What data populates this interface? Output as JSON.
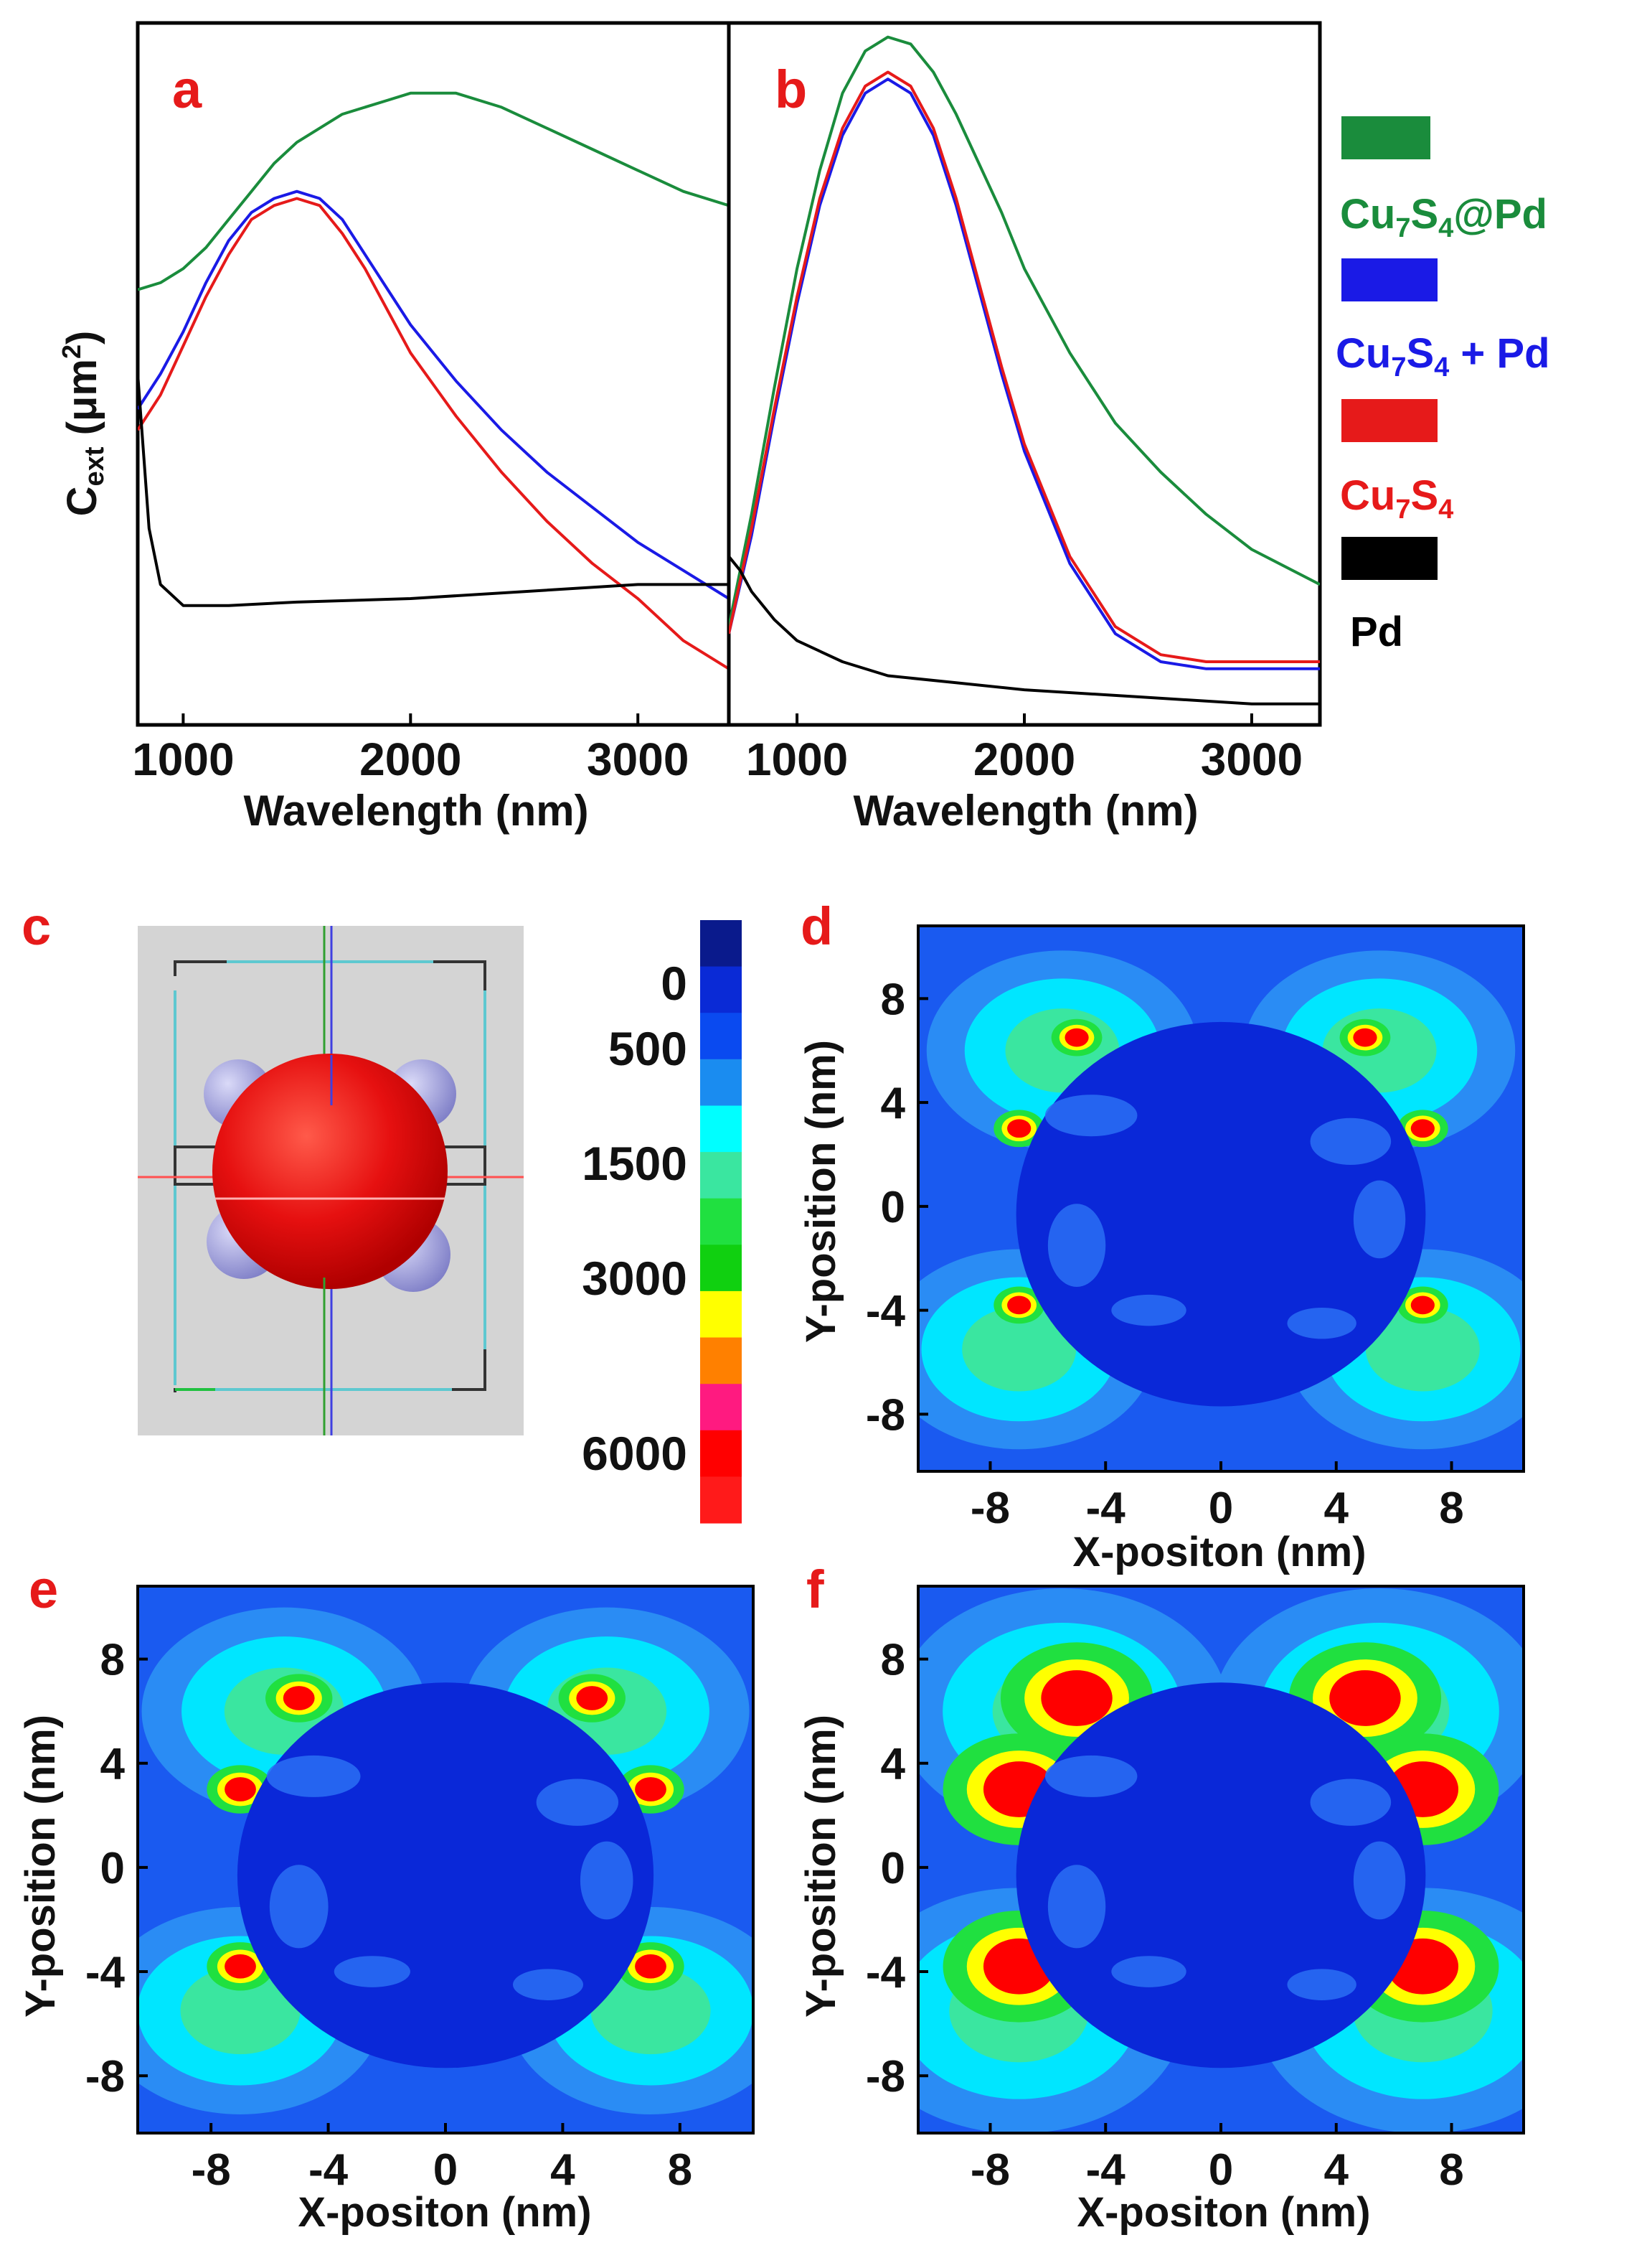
{
  "chart_data": [
    {
      "panel": "a",
      "type": "line",
      "xlabel": "Wavelength (nm)",
      "ylabel_main": "C",
      "ylabel_sub": "ext",
      "ylabel_unit_open": " (μm",
      "ylabel_unit_sup": "2",
      "ylabel_unit_close": ")",
      "xlim": [
        800,
        3400
      ],
      "ylim": [
        0,
        1
      ],
      "xticks": [
        1000,
        2000,
        3000
      ],
      "series": [
        {
          "name": "Cu7S4@Pd",
          "color": "#1a8c3c",
          "x": [
            800,
            900,
            1000,
            1100,
            1200,
            1300,
            1400,
            1500,
            1700,
            1900,
            2000,
            2200,
            2400,
            2600,
            2800,
            3000,
            3200,
            3400
          ],
          "y": [
            0.62,
            0.63,
            0.65,
            0.68,
            0.72,
            0.76,
            0.8,
            0.83,
            0.87,
            0.89,
            0.9,
            0.9,
            0.88,
            0.85,
            0.82,
            0.79,
            0.76,
            0.74
          ]
        },
        {
          "name": "Cu7S4 + Pd",
          "color": "#1a1ae6",
          "x": [
            800,
            900,
            1000,
            1100,
            1200,
            1300,
            1400,
            1500,
            1600,
            1700,
            1800,
            1900,
            2000,
            2200,
            2400,
            2600,
            2800,
            3000,
            3200,
            3400
          ],
          "y": [
            0.45,
            0.5,
            0.56,
            0.63,
            0.69,
            0.73,
            0.75,
            0.76,
            0.75,
            0.72,
            0.67,
            0.62,
            0.57,
            0.49,
            0.42,
            0.36,
            0.31,
            0.26,
            0.22,
            0.18
          ]
        },
        {
          "name": "Cu7S4",
          "color": "#e61a1a",
          "x": [
            800,
            900,
            1000,
            1100,
            1200,
            1300,
            1400,
            1500,
            1600,
            1700,
            1800,
            1900,
            2000,
            2200,
            2400,
            2600,
            2800,
            3000,
            3200,
            3400
          ],
          "y": [
            0.42,
            0.47,
            0.54,
            0.61,
            0.67,
            0.72,
            0.74,
            0.75,
            0.74,
            0.7,
            0.65,
            0.59,
            0.53,
            0.44,
            0.36,
            0.29,
            0.23,
            0.18,
            0.12,
            0.08
          ]
        },
        {
          "name": "Pd",
          "color": "#000000",
          "x": [
            800,
            850,
            900,
            1000,
            1200,
            1500,
            2000,
            2500,
            3000,
            3400
          ],
          "y": [
            0.5,
            0.28,
            0.2,
            0.17,
            0.17,
            0.175,
            0.18,
            0.19,
            0.2,
            0.2
          ]
        }
      ]
    },
    {
      "panel": "b",
      "type": "line",
      "xlabel": "Wavelength (nm)",
      "xlim": [
        700,
        3300
      ],
      "ylim": [
        0,
        1
      ],
      "xticks": [
        1000,
        2000,
        3000
      ],
      "series": [
        {
          "name": "Cu7S4@Pd",
          "color": "#1a8c3c",
          "x": [
            700,
            800,
            900,
            1000,
            1100,
            1200,
            1300,
            1400,
            1500,
            1600,
            1700,
            1800,
            1900,
            2000,
            2200,
            2400,
            2600,
            2800,
            3000,
            3300
          ],
          "y": [
            0.14,
            0.3,
            0.48,
            0.65,
            0.79,
            0.9,
            0.96,
            0.98,
            0.97,
            0.93,
            0.87,
            0.8,
            0.73,
            0.65,
            0.53,
            0.43,
            0.36,
            0.3,
            0.25,
            0.2
          ]
        },
        {
          "name": "Cu7S4 + Pd",
          "color": "#1a1ae6",
          "x": [
            700,
            800,
            900,
            1000,
            1100,
            1200,
            1300,
            1400,
            1500,
            1600,
            1700,
            1800,
            1900,
            2000,
            2200,
            2400,
            2600,
            2800,
            3000,
            3300
          ],
          "y": [
            0.13,
            0.27,
            0.44,
            0.6,
            0.74,
            0.84,
            0.9,
            0.92,
            0.9,
            0.84,
            0.74,
            0.62,
            0.5,
            0.39,
            0.23,
            0.13,
            0.09,
            0.08,
            0.08,
            0.08
          ]
        },
        {
          "name": "Cu7S4",
          "color": "#e61a1a",
          "x": [
            700,
            800,
            900,
            1000,
            1100,
            1200,
            1300,
            1400,
            1500,
            1600,
            1700,
            1800,
            1900,
            2000,
            2200,
            2400,
            2600,
            2800,
            3000,
            3300
          ],
          "y": [
            0.13,
            0.28,
            0.45,
            0.61,
            0.75,
            0.85,
            0.91,
            0.93,
            0.91,
            0.85,
            0.75,
            0.63,
            0.51,
            0.4,
            0.24,
            0.14,
            0.1,
            0.09,
            0.09,
            0.09
          ]
        },
        {
          "name": "Pd",
          "color": "#000000",
          "x": [
            700,
            750,
            800,
            900,
            1000,
            1200,
            1400,
            1700,
            2000,
            2500,
            3000,
            3300
          ],
          "y": [
            0.24,
            0.22,
            0.19,
            0.15,
            0.12,
            0.09,
            0.07,
            0.06,
            0.05,
            0.04,
            0.03,
            0.03
          ]
        }
      ]
    },
    {
      "panel": "d",
      "type": "heatmap",
      "xlabel": "X-positon (nm)",
      "ylabel": "Y-position (nm)",
      "xlim": [
        -10.5,
        10.5
      ],
      "ylim": [
        -10.2,
        10.8
      ],
      "xticks": [
        -8,
        -4,
        0,
        4,
        8
      ],
      "yticks": [
        8,
        4,
        0,
        -4,
        -8
      ],
      "hotspot_intensity": 1
    },
    {
      "panel": "e",
      "type": "heatmap",
      "xlabel": "X-positon (nm)",
      "ylabel": "Y-position (nm)",
      "xlim": [
        -10.5,
        10.5
      ],
      "ylim": [
        -10.2,
        10.8
      ],
      "xticks": [
        -8,
        -4,
        0,
        4,
        8
      ],
      "yticks": [
        8,
        4,
        0,
        -4,
        -8
      ],
      "hotspot_intensity": 1.3
    },
    {
      "panel": "f",
      "type": "heatmap",
      "xlabel": "X-positon (nm)",
      "ylabel": "Y-position (nm)",
      "xlim": [
        -10.5,
        10.5
      ],
      "ylim": [
        -10.2,
        10.8
      ],
      "xticks": [
        -8,
        -4,
        0,
        4,
        8
      ],
      "yticks": [
        8,
        4,
        0,
        -4,
        -8
      ],
      "hotspot_intensity": 3
    }
  ],
  "panel_letters": {
    "a": "a",
    "b": "b",
    "c": "c",
    "d": "d",
    "e": "e",
    "f": "f"
  },
  "legend": [
    {
      "color": "#1a8c3c",
      "base": "Cu",
      "sub1": "7",
      "mid": "S",
      "sub2": "4",
      "suffix": "@Pd"
    },
    {
      "color": "#1a1ae6",
      "base": "Cu",
      "sub1": "7",
      "mid": "S",
      "sub2": "4",
      "suffix": " + Pd"
    },
    {
      "color": "#e61a1a",
      "base": "Cu",
      "sub1": "7",
      "mid": "S",
      "sub2": "4",
      "suffix": ""
    },
    {
      "color": "#000000",
      "base": "Pd",
      "sub1": "",
      "mid": "",
      "sub2": "",
      "suffix": ""
    }
  ],
  "colorbar": {
    "labels": [
      "0",
      "500",
      "1500",
      "3000",
      "6000"
    ],
    "colors": [
      "#0a1a8c",
      "#0a2ad6",
      "#0a4af0",
      "#1a8cf0",
      "#00ffff",
      "#3ae6a0",
      "#20e040",
      "#10d010",
      "#ffff00",
      "#ff8000",
      "#ff1a80",
      "#ff0000",
      "#ff1a1a"
    ]
  },
  "colors": {
    "panel_letter": "#e61a1a",
    "field_background": "#1a5af0",
    "particle": "#0a28d8",
    "sphere": "#e61010",
    "pd_particle": "#a8a8e6",
    "model_background": "#d4d4d4"
  }
}
